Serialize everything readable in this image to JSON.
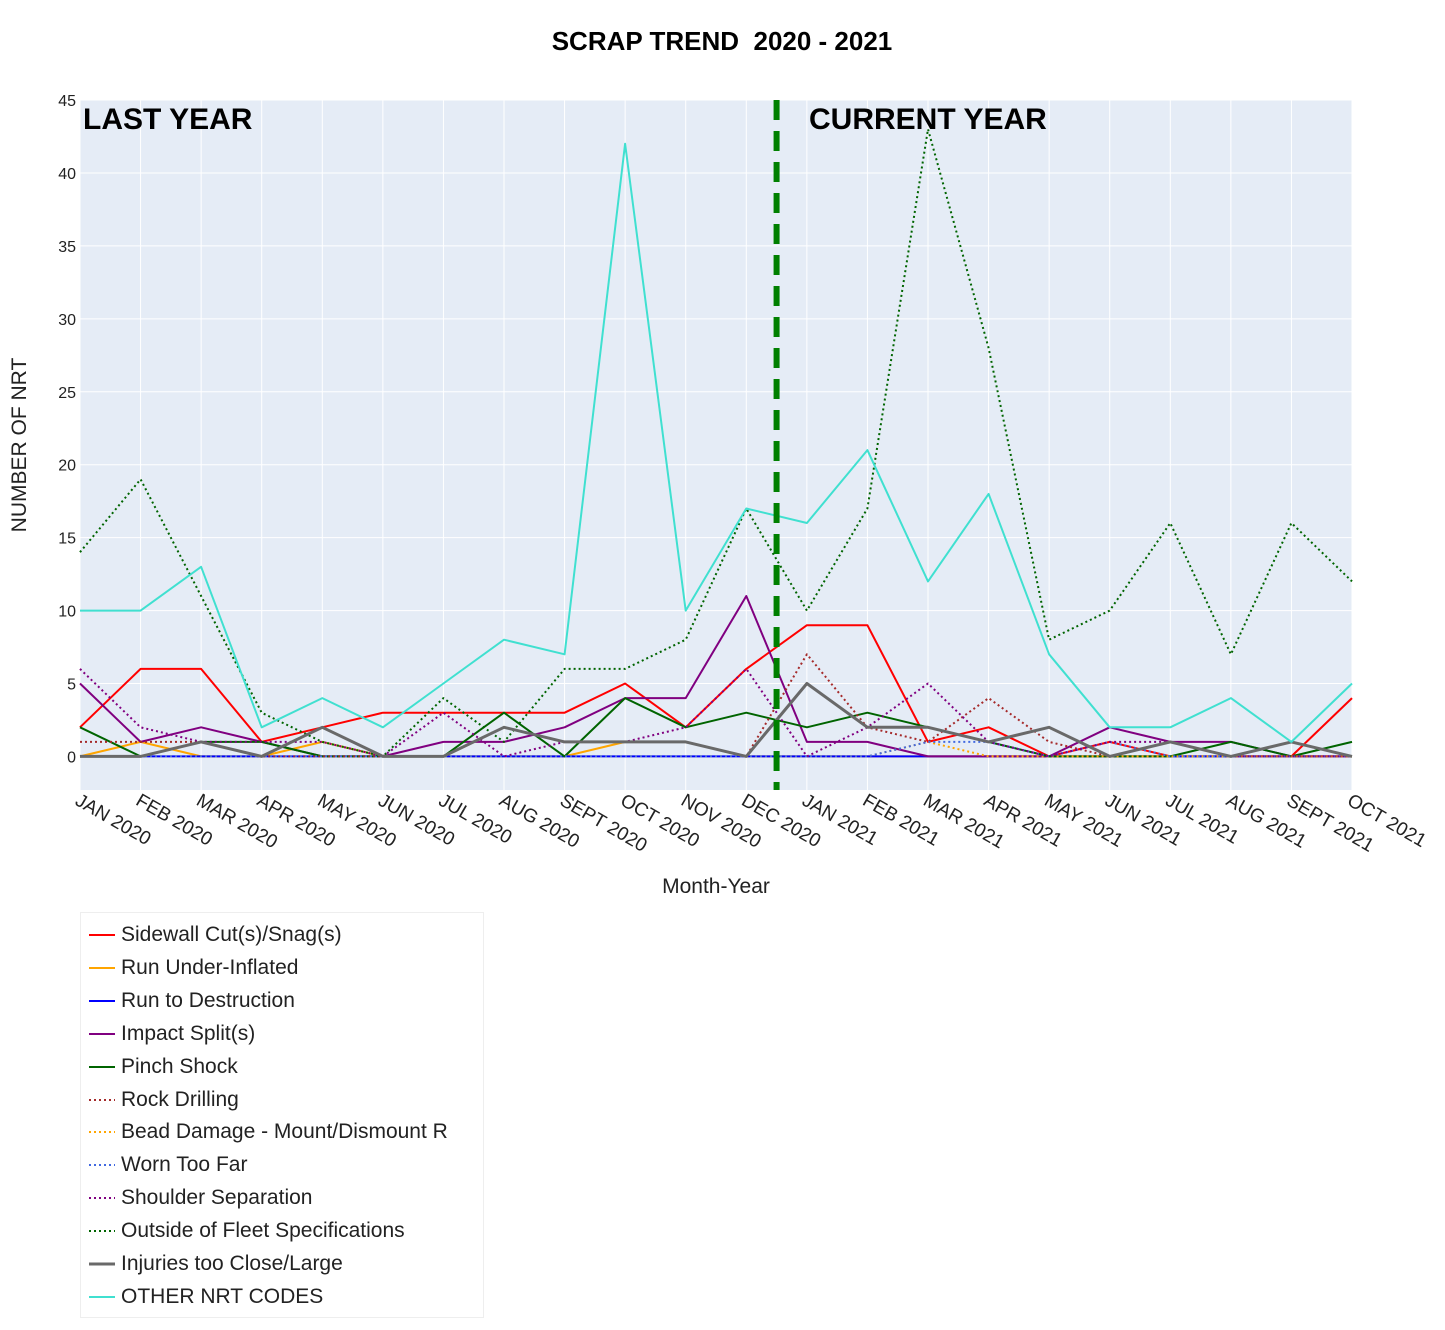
{
  "chart_data": {
    "type": "line",
    "title": "SCRAP TREND  2020 - 2021",
    "xlabel": "Month-Year",
    "ylabel": "NUMBER OF NRT",
    "ylim": [
      -2.3,
      45
    ],
    "yticks": [
      0,
      5,
      10,
      15,
      20,
      25,
      30,
      35,
      40,
      45
    ],
    "grid": true,
    "legend_position": "bottom-left",
    "annotations": [
      "LAST YEAR",
      "CURRENT YEAR"
    ],
    "divider": {
      "after_category": "DEC 2020",
      "offset": 0.5,
      "color": "#008000",
      "style": "dashed"
    },
    "categories": [
      "JAN 2020",
      "FEB 2020",
      "MAR 2020",
      "APR 2020",
      "MAY 2020",
      "JUN 2020",
      "JUL 2020",
      "AUG 2020",
      "SEPT 2020",
      "OCT 2020",
      "NOV 2020",
      "DEC 2020",
      "JAN 2021",
      "FEB 2021",
      "MAR 2021",
      "APR 2021",
      "MAY 2021",
      "JUN 2021",
      "JUL 2021",
      "AUG 2021",
      "SEPT 2021",
      "OCT 2021"
    ],
    "series": [
      {
        "name": "Sidewall Cut(s)/Snag(s)",
        "color": "#ff0000",
        "dash": "solid",
        "width": 2,
        "values": [
          2,
          6,
          6,
          1,
          2,
          3,
          3,
          3,
          3,
          5,
          2,
          6,
          9,
          9,
          1,
          2,
          0,
          1,
          0,
          0,
          0,
          4
        ]
      },
      {
        "name": "Run Under-Inflated",
        "color": "#ffa500",
        "dash": "solid",
        "width": 2,
        "values": [
          0,
          1,
          0,
          0,
          1,
          0,
          0,
          0,
          0,
          1,
          1,
          0,
          0,
          0,
          0,
          0,
          0,
          0,
          0,
          0,
          0,
          0
        ]
      },
      {
        "name": "Run to Destruction",
        "color": "#0000ff",
        "dash": "solid",
        "width": 2,
        "values": [
          0,
          0,
          0,
          0,
          0,
          0,
          0,
          0,
          0,
          0,
          0,
          0,
          0,
          0,
          0,
          0,
          0,
          0,
          0,
          0,
          0,
          0
        ]
      },
      {
        "name": "Impact Split(s)",
        "color": "#800080",
        "dash": "solid",
        "width": 2,
        "values": [
          5,
          1,
          2,
          1,
          0,
          0,
          1,
          1,
          2,
          4,
          4,
          11,
          1,
          1,
          0,
          0,
          0,
          2,
          1,
          1,
          0,
          0
        ]
      },
      {
        "name": "Pinch Shock",
        "color": "#006400",
        "dash": "solid",
        "width": 2,
        "values": [
          2,
          0,
          1,
          1,
          0,
          0,
          0,
          3,
          0,
          4,
          2,
          3,
          2,
          3,
          2,
          1,
          0,
          0,
          0,
          1,
          0,
          1
        ]
      },
      {
        "name": "Rock Drilling",
        "color": "#a52a2a",
        "dash": "dot",
        "width": 2,
        "values": [
          1,
          1,
          1,
          0,
          0,
          0,
          0,
          2,
          1,
          1,
          1,
          0,
          7,
          2,
          1,
          4,
          1,
          0,
          1,
          0,
          0,
          0
        ]
      },
      {
        "name": "Bead Damage - Mount/Dismount R",
        "color": "#ffa500",
        "dash": "dot",
        "width": 2,
        "values": [
          0,
          0,
          0,
          0,
          0,
          0,
          0,
          0,
          0,
          0,
          0,
          0,
          0,
          0,
          1,
          0,
          0,
          0,
          0,
          0,
          0,
          0
        ]
      },
      {
        "name": "Worn Too Far",
        "color": "#4169e1",
        "dash": "dot",
        "width": 2,
        "values": [
          0,
          0,
          0,
          0,
          0,
          0,
          0,
          0,
          0,
          0,
          0,
          0,
          0,
          0,
          1,
          1,
          0,
          1,
          0,
          0,
          0,
          0
        ]
      },
      {
        "name": "Shoulder Separation",
        "color": "#800080",
        "dash": "dot",
        "width": 2,
        "values": [
          6,
          2,
          1,
          1,
          1,
          0,
          3,
          0,
          1,
          1,
          2,
          6,
          0,
          2,
          5,
          1,
          0,
          1,
          1,
          0,
          0,
          0
        ]
      },
      {
        "name": "Outside of Fleet Specifications",
        "color": "#006400",
        "dash": "dot",
        "width": 2,
        "values": [
          14,
          19,
          11,
          3,
          1,
          0,
          4,
          1,
          6,
          6,
          8,
          17,
          10,
          17,
          43,
          28,
          8,
          10,
          16,
          7,
          16,
          12
        ]
      },
      {
        "name": "Injuries too Close/Large",
        "color": "#696969",
        "dash": "solid",
        "width": 3,
        "values": [
          0,
          0,
          1,
          0,
          2,
          0,
          0,
          2,
          1,
          1,
          1,
          0,
          5,
          2,
          2,
          1,
          2,
          0,
          1,
          0,
          1,
          0
        ]
      },
      {
        "name": "OTHER NRT CODES",
        "color": "#40e0d0",
        "dash": "solid",
        "width": 2,
        "values": [
          10,
          10,
          13,
          2,
          4,
          2,
          5,
          8,
          7,
          42,
          10,
          17,
          16,
          21,
          12,
          18,
          7,
          2,
          2,
          4,
          1,
          5
        ]
      }
    ]
  }
}
